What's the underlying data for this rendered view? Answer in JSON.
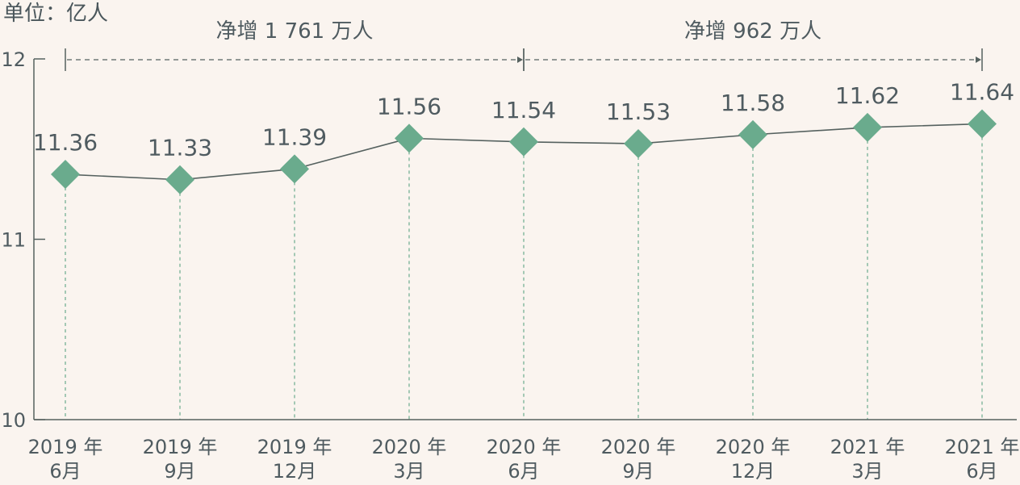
{
  "unit_label": "单位：亿人",
  "colors": {
    "background": "#faf4ef",
    "marker": "#6aab8d",
    "line": "#55615f",
    "guide": "#6aab8d",
    "axis": "#55615f",
    "text": "#4f5b60"
  },
  "chart_data": {
    "type": "line",
    "title": "",
    "xlabel": "",
    "ylabel": "单位：亿人",
    "ylim": [
      10,
      12
    ],
    "yticks": [
      10,
      11,
      12
    ],
    "grid": false,
    "categories": [
      [
        "2019 年",
        "6月"
      ],
      [
        "2019 年",
        "9月"
      ],
      [
        "2019 年",
        "12月"
      ],
      [
        "2020 年",
        "3月"
      ],
      [
        "2020 年",
        "6月"
      ],
      [
        "2020 年",
        "9月"
      ],
      [
        "2020 年",
        "12月"
      ],
      [
        "2021 年",
        "3月"
      ],
      [
        "2021 年",
        "6月"
      ]
    ],
    "values": [
      11.36,
      11.33,
      11.39,
      11.56,
      11.54,
      11.53,
      11.58,
      11.62,
      11.64
    ],
    "value_labels": [
      "11.36",
      "11.33",
      "11.39",
      "11.56",
      "11.54",
      "11.53",
      "11.58",
      "11.62",
      "11.64"
    ],
    "annotations": [
      {
        "text": "净增 1 761 万人",
        "from_index": 0,
        "to_index": 4
      },
      {
        "text": "净增 962 万人",
        "from_index": 4,
        "to_index": 8
      }
    ]
  }
}
